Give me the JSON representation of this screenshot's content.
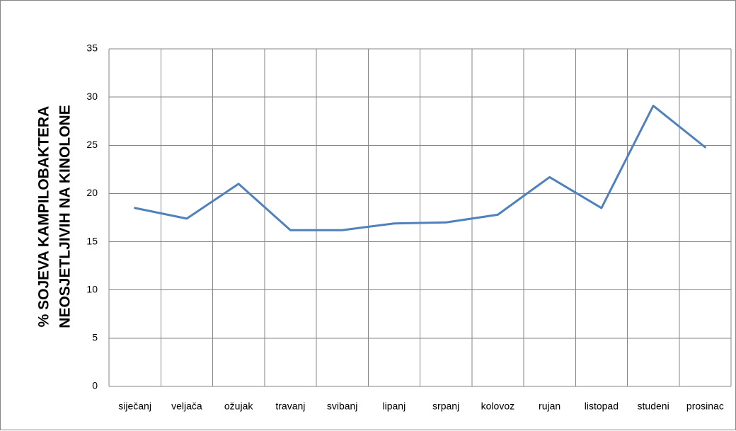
{
  "chart_data": {
    "type": "line",
    "title": "",
    "xlabel": "",
    "ylabel_lines": [
      "% SOJEVA KAMPILOBAKTERA",
      "NEOSJETLJIVIH NA KINOLONE"
    ],
    "categories": [
      "siječanj",
      "veljača",
      "ožujak",
      "travanj",
      "svibanj",
      "lipanj",
      "srpanj",
      "kolovoz",
      "rujan",
      "listopad",
      "studeni",
      "prosinac"
    ],
    "series": [
      {
        "values": [
          18.5,
          17.4,
          21.0,
          16.2,
          16.2,
          16.9,
          17.0,
          17.8,
          21.7,
          18.5,
          29.1,
          24.8
        ],
        "color": "#4F81BD"
      }
    ],
    "ylim": [
      0,
      35
    ],
    "yticks": [
      "0",
      "5",
      "10",
      "15",
      "20",
      "25",
      "30",
      "35"
    ],
    "grid": true,
    "legend": "none",
    "colors": {
      "grid": "#868686",
      "frame": "#868686",
      "line": "#4F81BD"
    }
  }
}
